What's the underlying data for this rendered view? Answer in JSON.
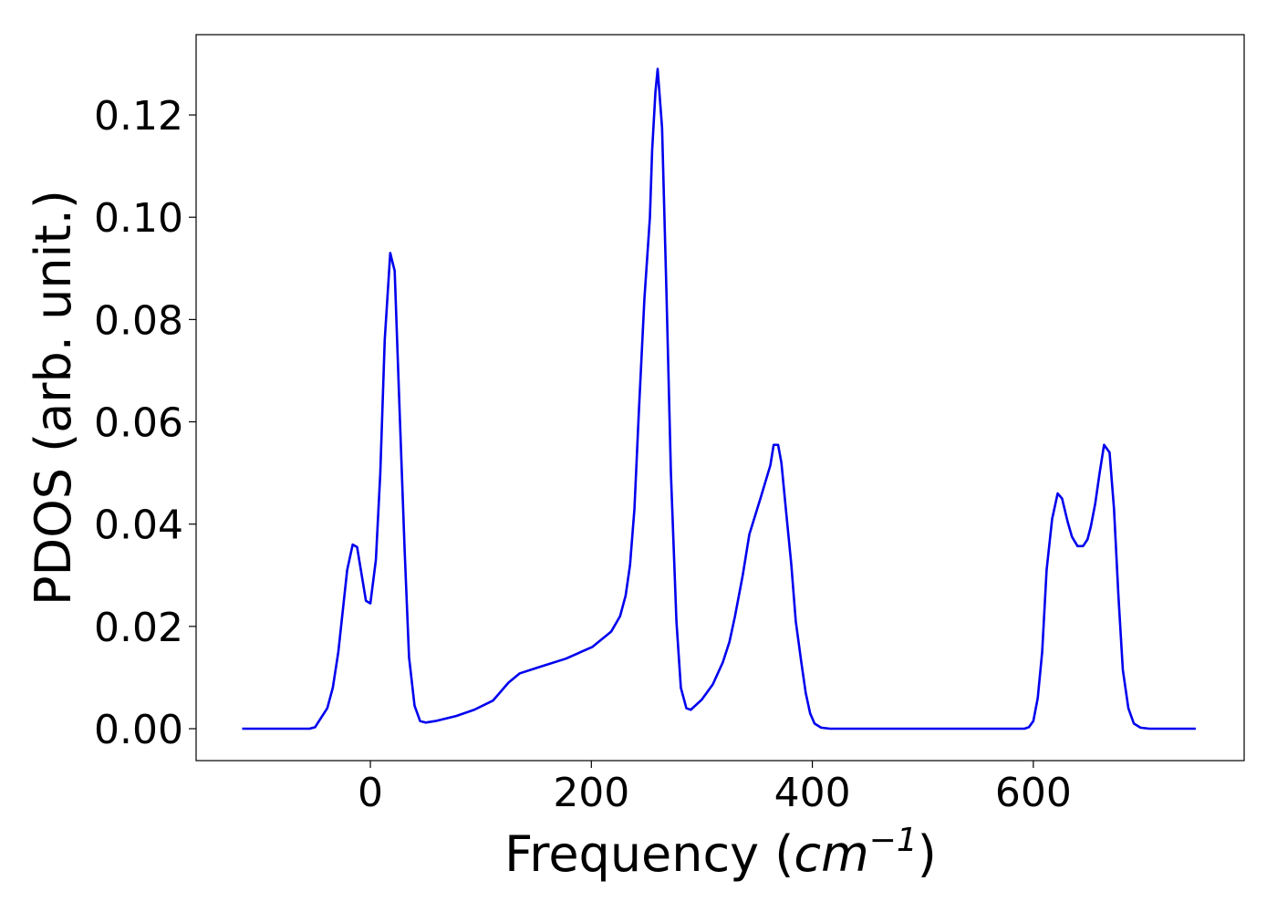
{
  "chart_data": {
    "type": "line",
    "ylabel": "PDOS (arb. unit.)",
    "xlabel": [
      "Frequency (",
      "cm",
      "−1",
      ")"
    ],
    "xlim": [
      -157.7,
      790.8
    ],
    "ylim": [
      -0.00624,
      0.1357
    ],
    "xticks": [
      0,
      200,
      400,
      600
    ],
    "yticks": [
      {
        "value": 0,
        "label": "0.00"
      },
      {
        "value": 0.02,
        "label": "0.02"
      },
      {
        "value": 0.04,
        "label": "0.04"
      },
      {
        "value": 0.06,
        "label": "0.06"
      },
      {
        "value": 0.08,
        "label": "0.08"
      },
      {
        "value": 0.1,
        "label": "0.10"
      },
      {
        "value": 0.12,
        "label": "0.12"
      }
    ],
    "color": "#0000ee",
    "x": [
      -116,
      -90,
      -70,
      -55,
      -50,
      -45,
      -39,
      -34,
      -29,
      -21,
      -16,
      -12,
      -4,
      0,
      5,
      9,
      13,
      18,
      22,
      26,
      31,
      35,
      40,
      45,
      50,
      59,
      78,
      94,
      111,
      125,
      135,
      152,
      177,
      201,
      218,
      226,
      231,
      235,
      239,
      243,
      248,
      253,
      255,
      258,
      260,
      264,
      268,
      272,
      277,
      281,
      286,
      290,
      300,
      310,
      319,
      325,
      330,
      337,
      343,
      353,
      362,
      365,
      369,
      372,
      376,
      381,
      385,
      390,
      394,
      398,
      402,
      408,
      416,
      500,
      592,
      596,
      600,
      604,
      608,
      612,
      617,
      622,
      626,
      631,
      635,
      640,
      645,
      649,
      652,
      656,
      660,
      664,
      669,
      673,
      677,
      681,
      686,
      691,
      697,
      705,
      747
    ],
    "values": [
      0,
      0,
      0,
      0,
      0.0003,
      0.002,
      0.004,
      0.008,
      0.015,
      0.031,
      0.036,
      0.0355,
      0.025,
      0.0245,
      0.033,
      0.05,
      0.076,
      0.093,
      0.0895,
      0.065,
      0.035,
      0.014,
      0.0045,
      0.0015,
      0.0012,
      0.0015,
      0.0025,
      0.0037,
      0.0055,
      0.009,
      0.0108,
      0.012,
      0.0137,
      0.016,
      0.019,
      0.022,
      0.026,
      0.032,
      0.043,
      0.062,
      0.084,
      0.1,
      0.113,
      0.1245,
      0.129,
      0.1175,
      0.085,
      0.05,
      0.021,
      0.008,
      0.004,
      0.0037,
      0.0057,
      0.0087,
      0.013,
      0.017,
      0.022,
      0.03,
      0.038,
      0.045,
      0.0515,
      0.0555,
      0.0555,
      0.052,
      0.043,
      0.032,
      0.021,
      0.013,
      0.007,
      0.003,
      0.001,
      0.0002,
      0,
      0,
      0,
      0.0003,
      0.0015,
      0.006,
      0.015,
      0.031,
      0.041,
      0.046,
      0.045,
      0.0405,
      0.0375,
      0.0357,
      0.0357,
      0.037,
      0.0395,
      0.044,
      0.05,
      0.0555,
      0.054,
      0.043,
      0.026,
      0.0115,
      0.004,
      0.001,
      0.0002,
      0,
      0
    ]
  }
}
